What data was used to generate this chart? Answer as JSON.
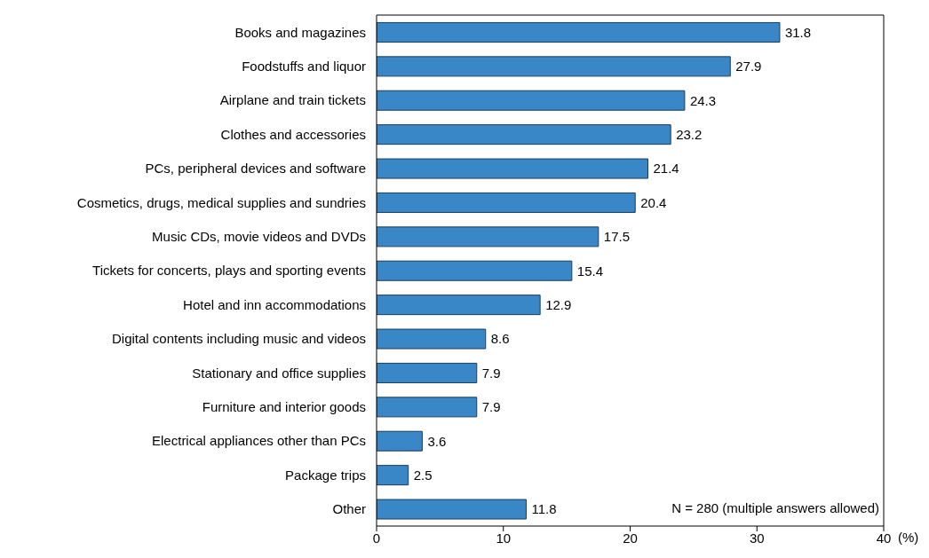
{
  "chart_data": {
    "type": "bar",
    "orientation": "horizontal",
    "categories": [
      "Books and magazines",
      "Foodstuffs and liquor",
      "Airplane and train tickets",
      "Clothes and accessories",
      "PCs, peripheral devices and software",
      "Cosmetics, drugs, medical supplies and sundries",
      "Music CDs, movie videos and DVDs",
      "Tickets for concerts, plays and sporting events",
      "Hotel and inn accommodations",
      "Digital contents including music and videos",
      "Stationary and office supplies",
      "Furniture and interior goods",
      "Electrical appliances other than PCs",
      "Package trips",
      "Other"
    ],
    "values": [
      31.8,
      27.9,
      24.3,
      23.2,
      21.4,
      20.4,
      17.5,
      15.4,
      12.9,
      8.6,
      7.9,
      7.9,
      3.6,
      2.5,
      11.8
    ],
    "color": "#3a87c8",
    "xlim": [
      0,
      40
    ],
    "xticks": [
      0,
      10,
      20,
      30,
      40
    ],
    "xlabel": "(%)",
    "data_labels": true,
    "grid": false,
    "annotations": [
      "N = 280 (multiple answers allowed)"
    ]
  }
}
